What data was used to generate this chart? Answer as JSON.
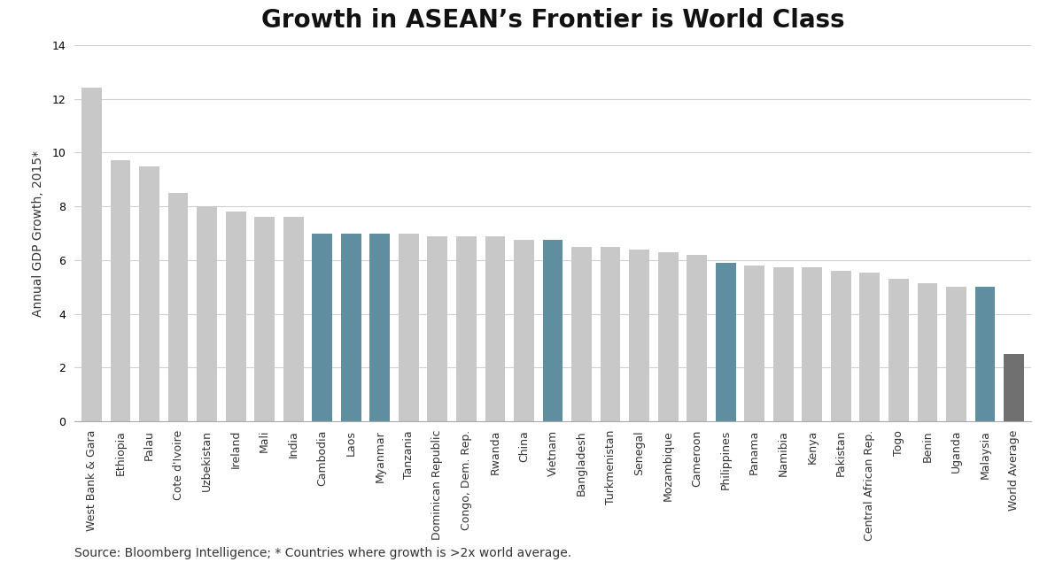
{
  "title": "Growth in ASEAN’s Frontier is World Class",
  "ylabel": "Annual GDP Growth, 2015*",
  "source_text": "Source: Bloomberg Intelligence; * Countries where growth is >2x world average.",
  "categories": [
    "West Bank & Gara",
    "Ethiopia",
    "Palau",
    "Cote d'Ivoire",
    "Uzbekistan",
    "Ireland",
    "Mali",
    "India",
    "Cambodia",
    "Laos",
    "Myanmar",
    "Tanzania",
    "Dominican Republic",
    "Congo, Dem. Rep.",
    "Rwanda",
    "China",
    "Vietnam",
    "Bangladesh",
    "Turkmenistan",
    "Senegal",
    "Mozambique",
    "Cameroon",
    "Philippines",
    "Panama",
    "Namibia",
    "Kenya",
    "Pakistan",
    "Central African Rep.",
    "Togo",
    "Benin",
    "Uganda",
    "Malaysia",
    "World Average"
  ],
  "values": [
    12.4,
    9.7,
    9.5,
    8.5,
    8.0,
    7.8,
    7.6,
    7.6,
    7.0,
    7.0,
    7.0,
    7.0,
    6.9,
    6.9,
    6.9,
    6.75,
    6.75,
    6.5,
    6.5,
    6.4,
    6.3,
    6.2,
    5.9,
    5.8,
    5.75,
    5.75,
    5.6,
    5.55,
    5.3,
    5.15,
    5.0,
    5.0,
    2.5
  ],
  "bar_colors": {
    "light_gray": "#c8c8c8",
    "teal": "#5f8ea0",
    "dark_gray": "#707070"
  },
  "asean_countries": [
    "Cambodia",
    "Laos",
    "Myanmar",
    "Vietnam",
    "Philippines",
    "Malaysia"
  ],
  "world_average_country": "World Average",
  "ylim": [
    0,
    14
  ],
  "yticks": [
    0,
    2,
    4,
    6,
    8,
    10,
    12,
    14
  ],
  "title_fontsize": 20,
  "ylabel_fontsize": 10,
  "tick_fontsize": 9,
  "source_fontsize": 10,
  "background_color": "#ffffff",
  "grid_color": "#d0d0d0"
}
